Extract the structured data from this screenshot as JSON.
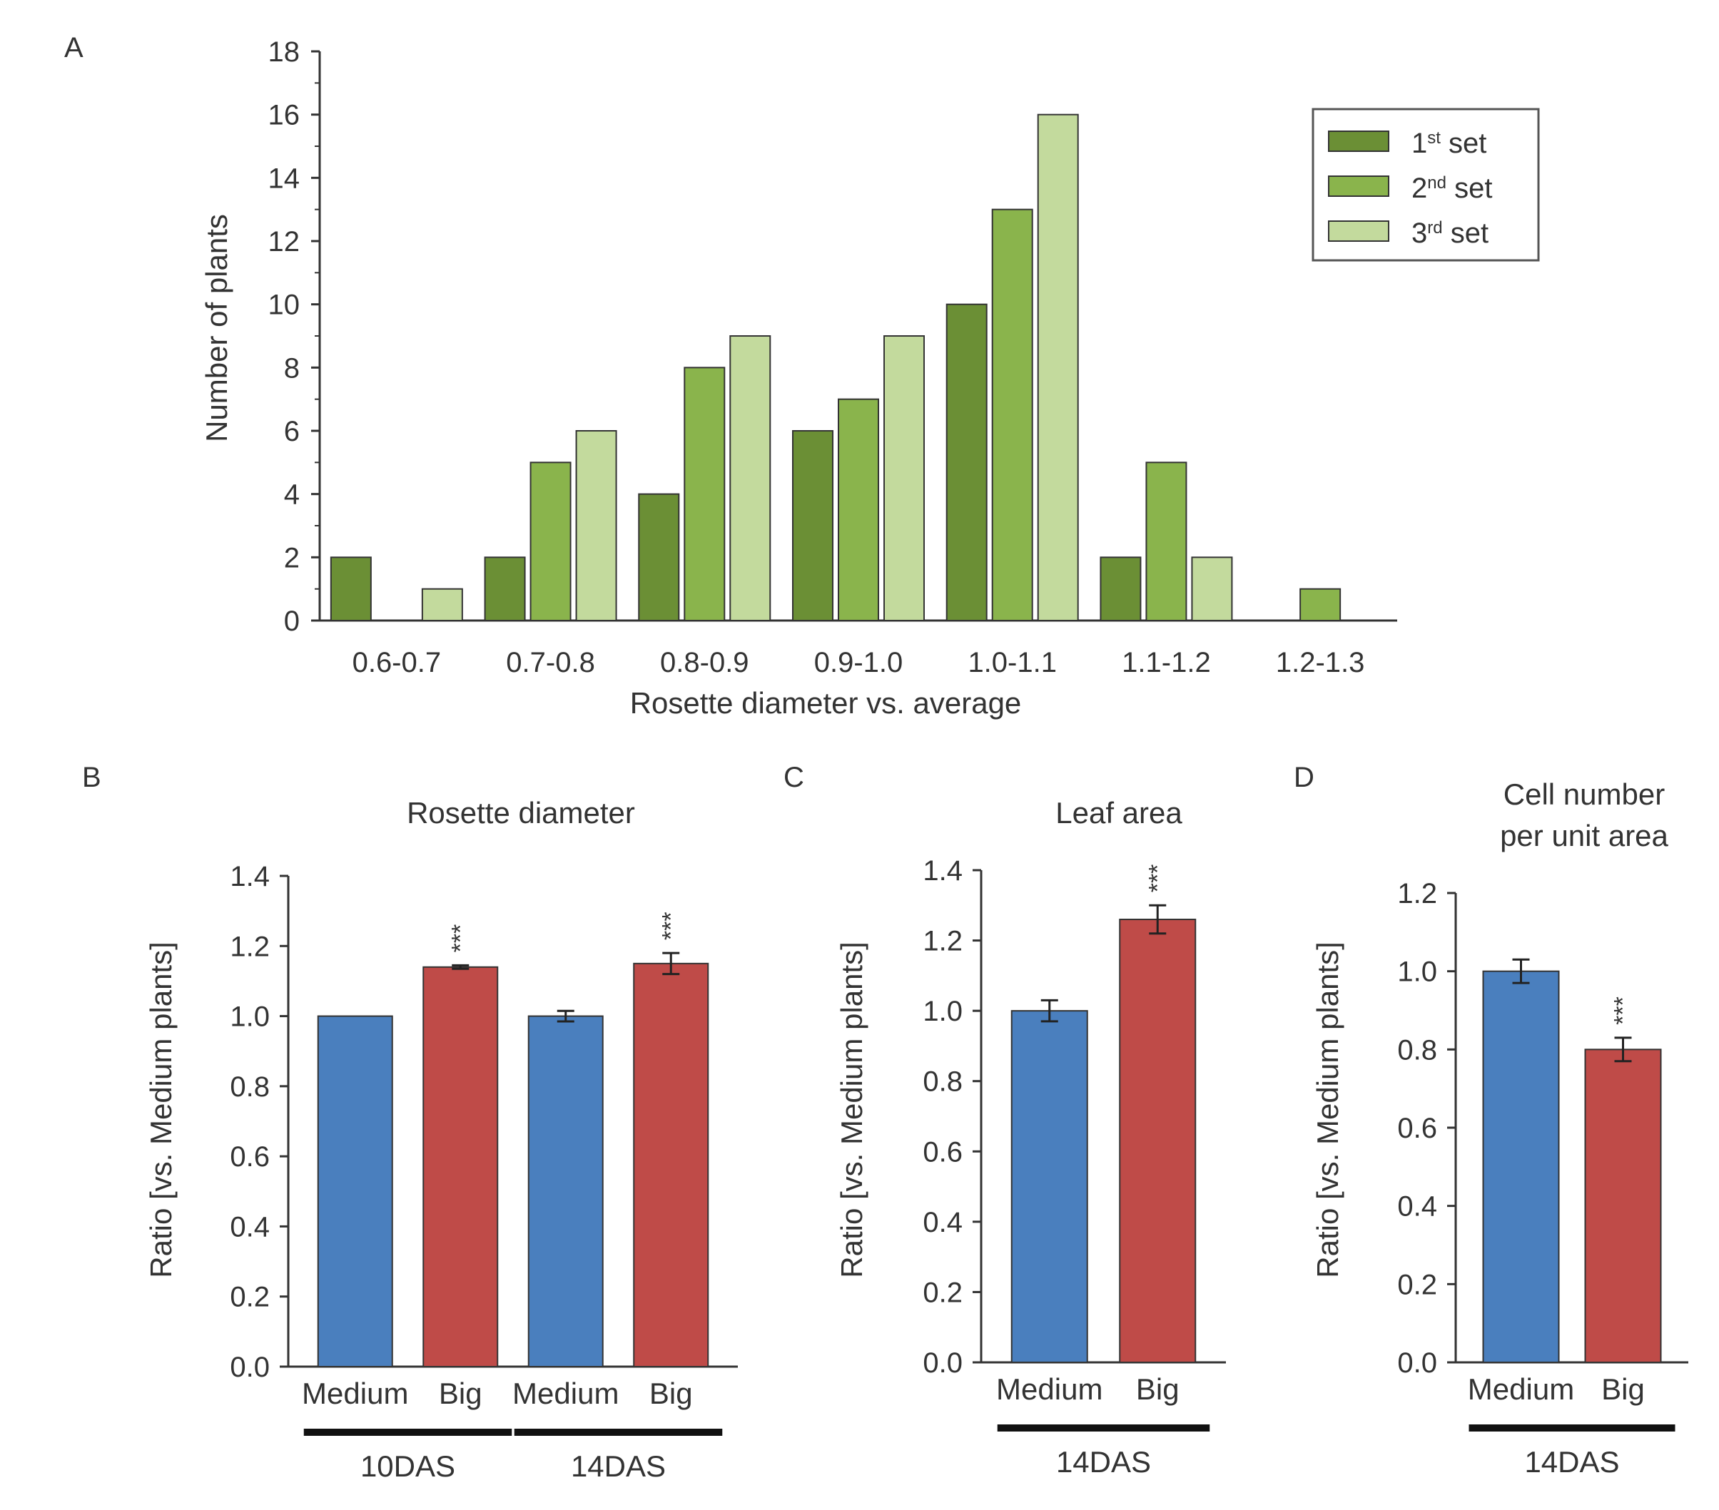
{
  "panel_labels": {
    "a": "A",
    "b": "B",
    "c": "C",
    "d": "D"
  },
  "colors": {
    "set1": "#6b8f35",
    "set2": "#8ab44c",
    "set3": "#c3da9d",
    "medium": "#4a7fbe",
    "big": "#bf4b48",
    "axis": "#333333",
    "text": "#333333"
  },
  "chart_data": [
    {
      "id": "A",
      "type": "bar",
      "ylabel": "Number of plants",
      "xlabel": "Rosette diameter vs. average",
      "ylim": [
        0,
        18
      ],
      "yticks": [
        "0",
        "2",
        "4",
        "6",
        "8",
        "10",
        "12",
        "14",
        "16",
        "18"
      ],
      "categories": [
        "0.6-0.7",
        "0.7-0.8",
        "0.8-0.9",
        "0.9-1.0",
        "1.0-1.1",
        "1.1-1.2",
        "1.2-1.3"
      ],
      "legend_position": "top-right",
      "series": [
        {
          "name": "1st set",
          "base": "1",
          "sup": "st",
          "rest": " set",
          "values": [
            2,
            2,
            4,
            6,
            10,
            2,
            0
          ]
        },
        {
          "name": "2nd set",
          "base": "2",
          "sup": "nd",
          "rest": " set",
          "values": [
            0,
            5,
            8,
            7,
            13,
            5,
            1
          ]
        },
        {
          "name": "3rd set",
          "base": "3",
          "sup": "rd",
          "rest": " set",
          "values": [
            1,
            6,
            9,
            9,
            16,
            2,
            0
          ]
        }
      ]
    },
    {
      "id": "B",
      "type": "bar",
      "title": "Rosette diameter",
      "ylabel": "Ratio [vs. Medium plants]",
      "ylim": [
        0,
        1.4
      ],
      "yticks": [
        "0.0",
        "0.2",
        "0.4",
        "0.6",
        "0.8",
        "1.0",
        "1.2",
        "1.4"
      ],
      "bars": [
        {
          "label": "Medium",
          "value": 1.0,
          "error": 0.0,
          "sig": "",
          "group": "medium"
        },
        {
          "label": "Big",
          "value": 1.14,
          "error": 0.005,
          "sig": "***",
          "group": "big"
        },
        {
          "label": "Medium",
          "value": 1.0,
          "error": 0.015,
          "sig": "",
          "group": "medium"
        },
        {
          "label": "Big",
          "value": 1.15,
          "error": 0.03,
          "sig": "***",
          "group": "big"
        }
      ],
      "timepoints": [
        "10DAS",
        "14DAS"
      ]
    },
    {
      "id": "C",
      "type": "bar",
      "title": "Leaf area",
      "ylabel": "Ratio [vs. Medium plants]",
      "ylim": [
        0,
        1.4
      ],
      "yticks": [
        "0.0",
        "0.2",
        "0.4",
        "0.6",
        "0.8",
        "1.0",
        "1.2",
        "1.4"
      ],
      "bars": [
        {
          "label": "Medium",
          "value": 1.0,
          "error": 0.03,
          "sig": "",
          "group": "medium"
        },
        {
          "label": "Big",
          "value": 1.26,
          "error": 0.04,
          "sig": "***",
          "group": "big"
        }
      ],
      "timepoints": [
        "14DAS"
      ]
    },
    {
      "id": "D",
      "type": "bar",
      "title_line1": "Cell number",
      "title_line2": "per unit area",
      "ylabel": "Ratio [vs. Medium plants]",
      "ylim": [
        0,
        1.2
      ],
      "yticks": [
        "0.0",
        "0.2",
        "0.4",
        "0.6",
        "0.8",
        "1.0",
        "1.2"
      ],
      "bars": [
        {
          "label": "Medium",
          "value": 1.0,
          "error": 0.03,
          "sig": "",
          "group": "medium"
        },
        {
          "label": "Big",
          "value": 0.8,
          "error": 0.03,
          "sig": "***",
          "group": "big"
        }
      ],
      "timepoints": [
        "14DAS"
      ]
    }
  ]
}
